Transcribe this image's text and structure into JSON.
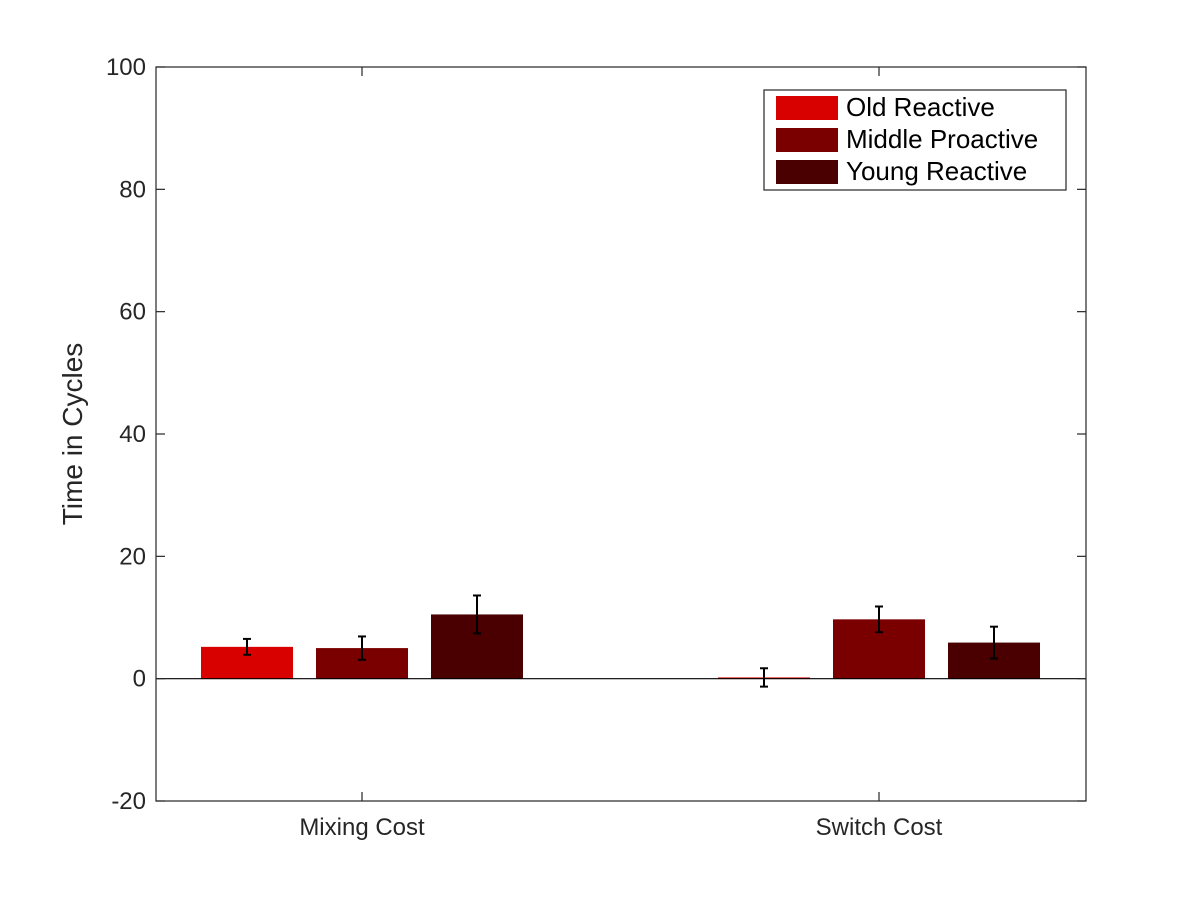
{
  "chart_data": {
    "type": "bar",
    "title": "",
    "xlabel": "",
    "ylabel": "Time in Cycles",
    "ylim": [
      -20,
      100
    ],
    "yticks": [
      -20,
      0,
      20,
      40,
      60,
      80,
      100
    ],
    "categories": [
      "Mixing Cost",
      "Switch Cost"
    ],
    "series": [
      {
        "name": "Old Reactive",
        "color": "#d90000",
        "values": [
          5.2,
          0.2
        ],
        "errors": [
          1.3,
          1.5
        ]
      },
      {
        "name": "Middle Proactive",
        "color": "#7a0000",
        "values": [
          5.0,
          9.7
        ],
        "errors": [
          1.9,
          2.1
        ]
      },
      {
        "name": "Young Reactive",
        "color": "#4a0000",
        "values": [
          10.5,
          5.9
        ],
        "errors": [
          3.1,
          2.6
        ]
      }
    ],
    "legend_position": "top-right",
    "grid": false
  }
}
